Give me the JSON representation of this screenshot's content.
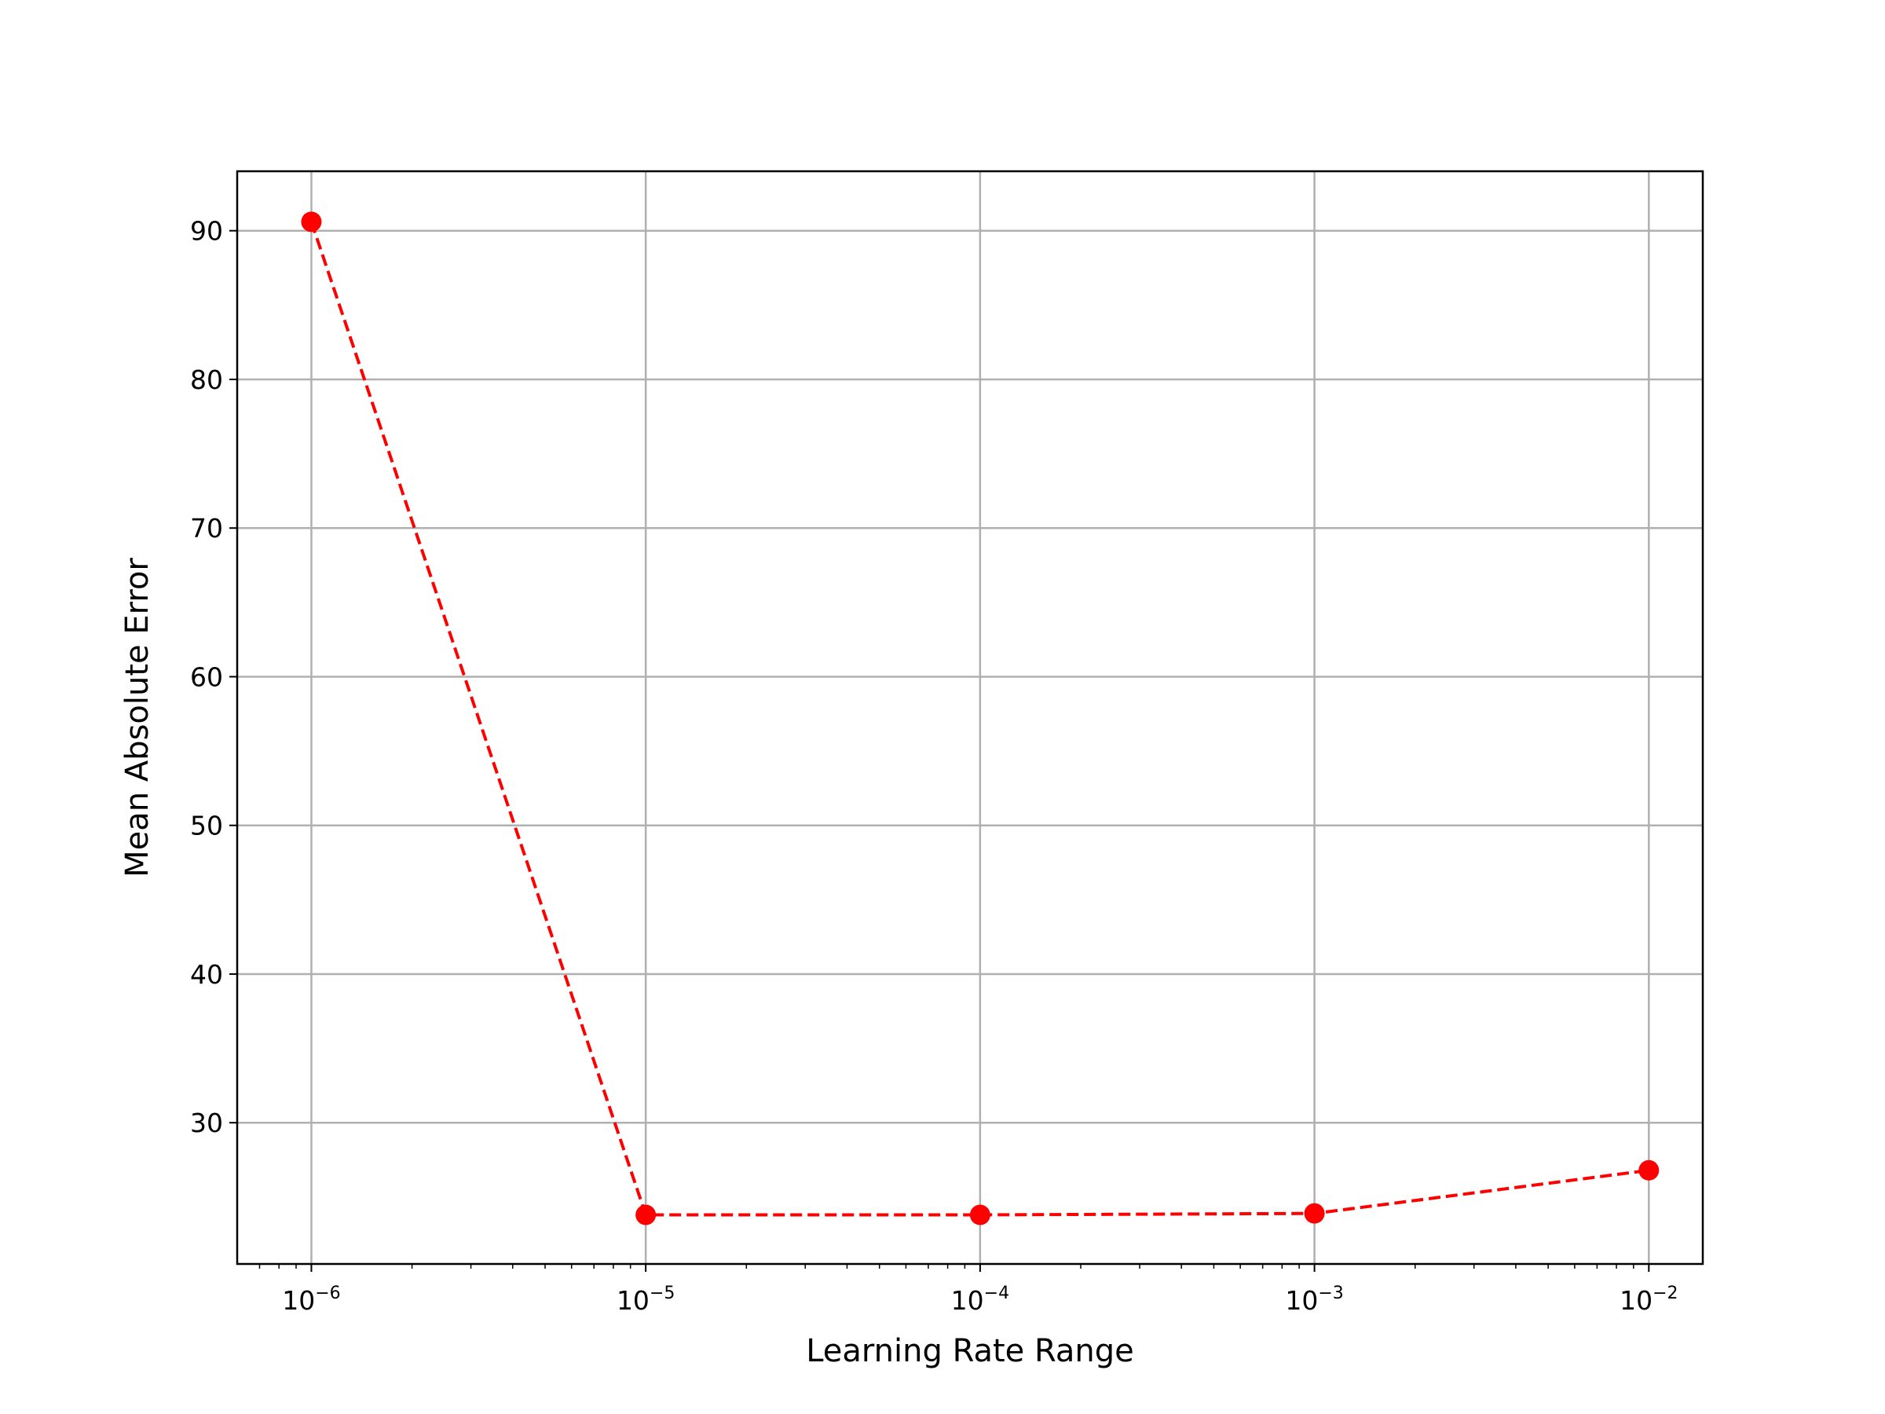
{
  "chart_data": {
    "type": "line",
    "title": "",
    "xlabel": "Learning Rate Range",
    "ylabel": "Mean Absolute Error",
    "x_scale": "log",
    "x": [
      1e-06,
      1e-05,
      0.0001,
      0.001,
      0.01
    ],
    "xlim": [
      6e-07,
      0.0145
    ],
    "ylim": [
      20.5,
      94.0
    ],
    "x_ticks": [
      {
        "value": 1e-06,
        "base": "10",
        "exp": "−6"
      },
      {
        "value": 1e-05,
        "base": "10",
        "exp": "−5"
      },
      {
        "value": 0.0001,
        "base": "10",
        "exp": "−4"
      },
      {
        "value": 0.001,
        "base": "10",
        "exp": "−3"
      },
      {
        "value": 0.01,
        "base": "10",
        "exp": "−2"
      }
    ],
    "y_ticks": [
      30,
      40,
      50,
      60,
      70,
      80,
      90
    ],
    "grid": true,
    "series": [
      {
        "values": [
          90.6,
          23.8,
          23.8,
          23.9,
          26.8
        ],
        "color": "#ff0000",
        "line_style": "dashed",
        "marker": "circle"
      }
    ]
  }
}
